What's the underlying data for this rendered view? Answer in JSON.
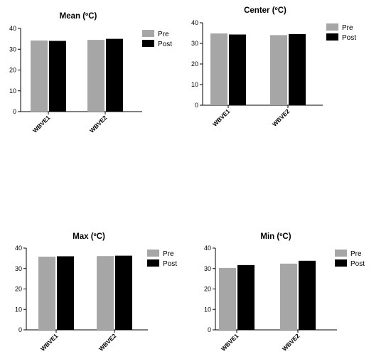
{
  "colors": {
    "pre": "#a6a6a6",
    "post": "#000000"
  },
  "chart_data": [
    {
      "type": "bar",
      "title": "Mean (ºC)",
      "categories": [
        "WBVE1",
        "WBVE2"
      ],
      "series": [
        {
          "name": "Pre",
          "values": [
            34.2,
            34.5
          ]
        },
        {
          "name": "Post",
          "values": [
            34.0,
            35.0
          ]
        }
      ],
      "ylim": [
        0,
        40
      ],
      "yticks": [
        0,
        10,
        20,
        30,
        40
      ],
      "legend": "top-right",
      "grid": false
    },
    {
      "type": "bar",
      "title": "Center (ºC)",
      "categories": [
        "WBVE1",
        "WBVE2"
      ],
      "series": [
        {
          "name": "Pre",
          "values": [
            34.8,
            34.0
          ]
        },
        {
          "name": "Post",
          "values": [
            34.3,
            34.5
          ]
        }
      ],
      "ylim": [
        0,
        40
      ],
      "yticks": [
        0,
        10,
        20,
        30,
        40
      ],
      "legend": "top-right",
      "grid": false
    },
    {
      "type": "bar",
      "title": "Max (ºC)",
      "categories": [
        "WBVE1",
        "WBVE2"
      ],
      "series": [
        {
          "name": "Pre",
          "values": [
            35.8,
            36.1
          ]
        },
        {
          "name": "Post",
          "values": [
            36.0,
            36.3
          ]
        }
      ],
      "ylim": [
        0,
        40
      ],
      "yticks": [
        0,
        10,
        20,
        30,
        40
      ],
      "legend": "top-right",
      "grid": false
    },
    {
      "type": "bar",
      "title": "Min (ºC)",
      "categories": [
        "WBVE1",
        "WBVE2"
      ],
      "series": [
        {
          "name": "Pre",
          "values": [
            30.3,
            32.4
          ]
        },
        {
          "name": "Post",
          "values": [
            31.7,
            33.8
          ]
        }
      ],
      "ylim": [
        0,
        40
      ],
      "yticks": [
        0,
        10,
        20,
        30,
        40
      ],
      "legend": "top-right",
      "grid": false
    }
  ]
}
